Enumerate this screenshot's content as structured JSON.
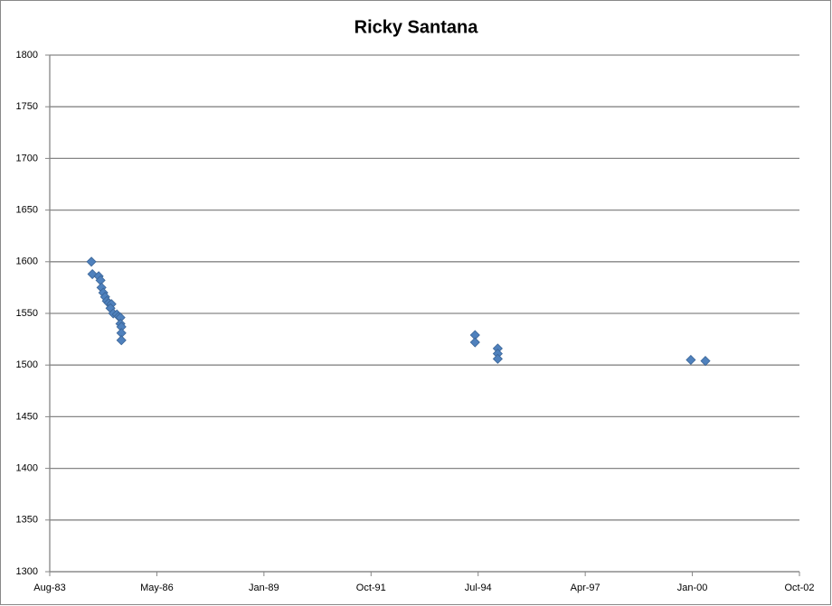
{
  "chart_data": {
    "type": "scatter",
    "title": "Ricky Santana",
    "series": [
      {
        "color": "#4f81bd",
        "x": [
          30924,
          30933,
          30992,
          31009,
          31018,
          31035,
          31052,
          31068,
          31085,
          31111,
          31102,
          31128,
          31162,
          31179,
          31195,
          31195,
          31204,
          31204,
          31204,
          34506,
          34506,
          34718,
          34718,
          34718,
          36521,
          36657
        ],
        "values": [
          1600,
          1588,
          1586,
          1582,
          1575,
          1570,
          1566,
          1562,
          1560,
          1559,
          1555,
          1550,
          1549,
          1547,
          1546,
          1540,
          1537,
          1531,
          1524,
          1529,
          1522,
          1516,
          1511,
          1506,
          1505,
          1504
        ]
      }
    ],
    "xlim": [
      30535,
      37535
    ],
    "xticks": [
      {
        "value": 30535,
        "label": "Aug-83"
      },
      {
        "value": 31535,
        "label": "May-86"
      },
      {
        "value": 32535,
        "label": "Jan-89"
      },
      {
        "value": 33535,
        "label": "Oct-91"
      },
      {
        "value": 34535,
        "label": "Jul-94"
      },
      {
        "value": 35535,
        "label": "Apr-97"
      },
      {
        "value": 36535,
        "label": "Jan-00"
      },
      {
        "value": 37535,
        "label": "Oct-02"
      }
    ],
    "ylim": [
      1300,
      1800
    ],
    "yticks": [
      1300,
      1350,
      1400,
      1450,
      1500,
      1550,
      1600,
      1650,
      1700,
      1750,
      1800
    ],
    "grid": true
  }
}
